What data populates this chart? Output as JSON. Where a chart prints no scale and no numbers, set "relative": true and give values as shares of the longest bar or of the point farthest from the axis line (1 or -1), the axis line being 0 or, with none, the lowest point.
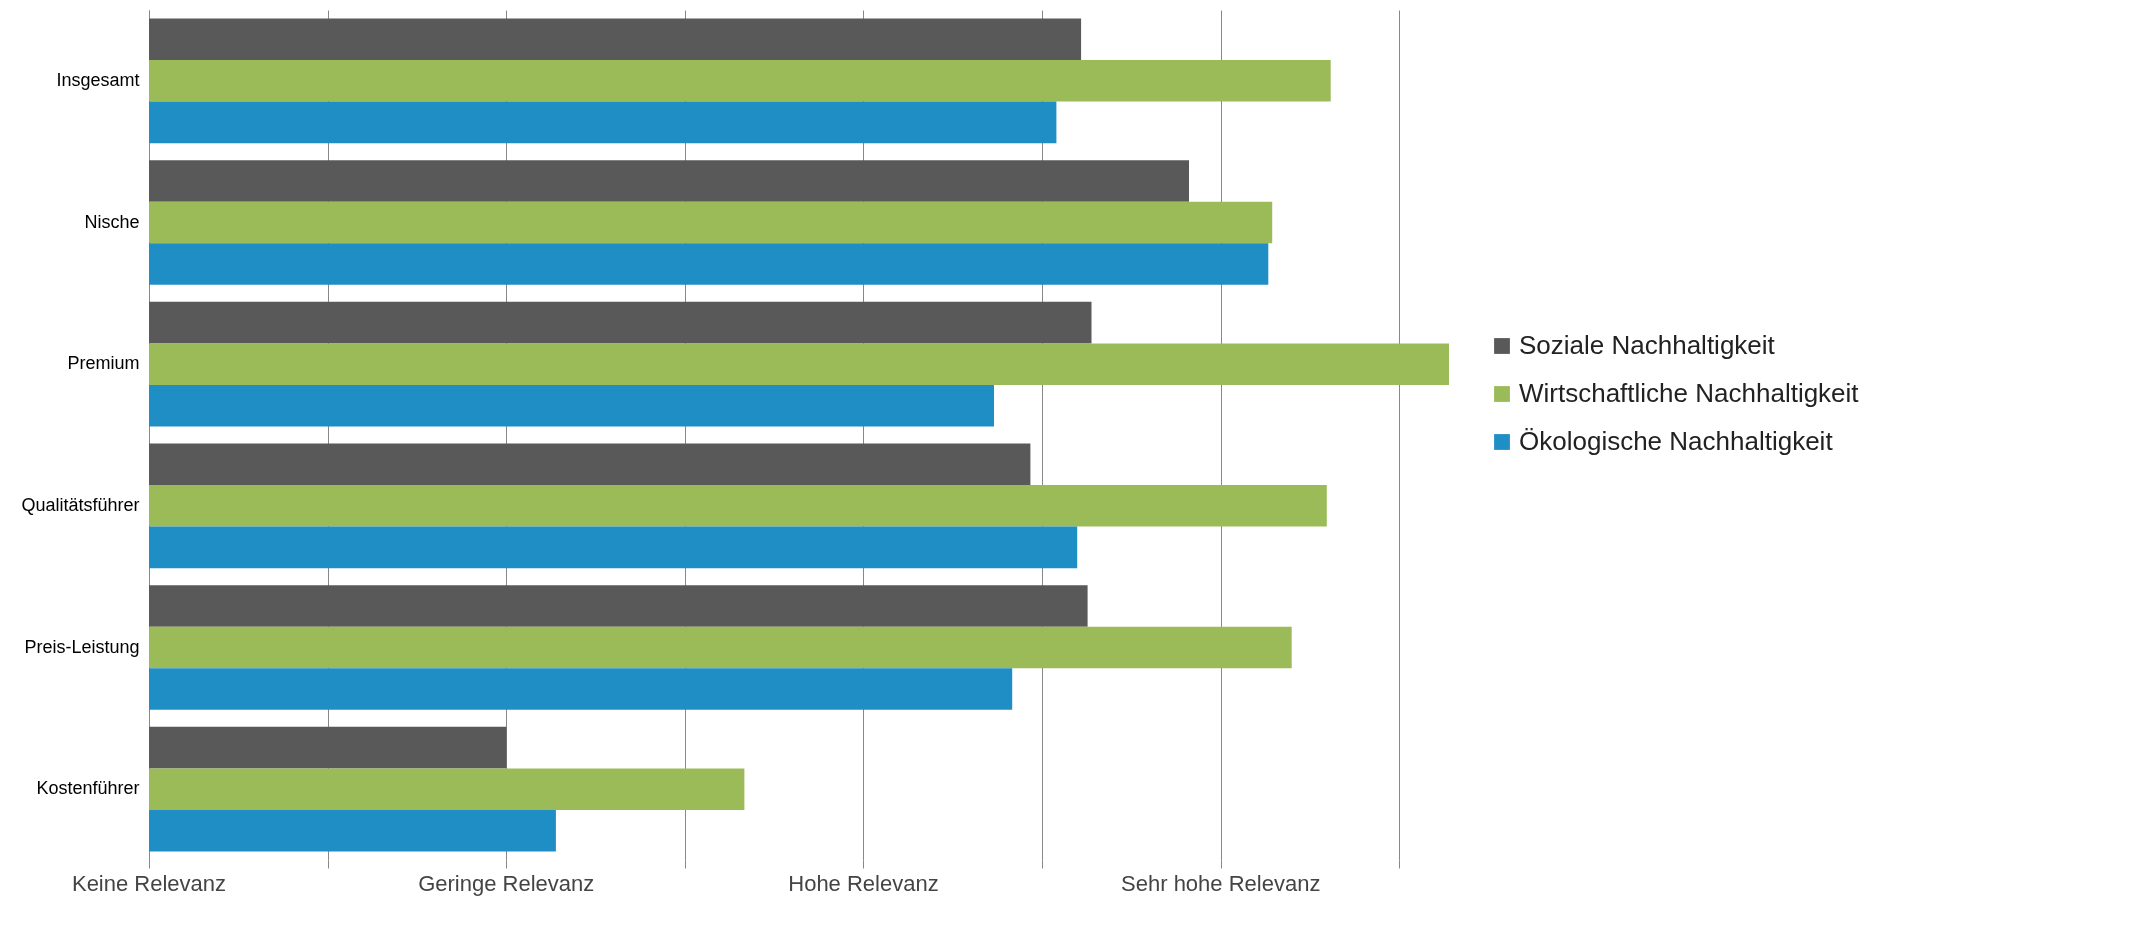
{
  "chart_data": {
    "type": "bar",
    "orientation": "horizontal",
    "relative": true,
    "categories": [
      "Insgesamt",
      "Nische",
      "Premium",
      "Qualitätsführer",
      "Preis-Leistung",
      "Kostenführer"
    ],
    "series": [
      {
        "name": "Soziale Nachhaltigkeit",
        "color": "#595959",
        "values": [
          0.717,
          0.8,
          0.725,
          0.678,
          0.722,
          0.275
        ]
      },
      {
        "name": "Wirtschaftliche Nachhaltigkeit",
        "color": "#9bbb59",
        "values": [
          0.909,
          0.864,
          1.0,
          0.906,
          0.879,
          0.458
        ]
      },
      {
        "name": "Ökologische Nachhaltigkeit",
        "color": "#1f8ec5",
        "values": [
          0.698,
          0.861,
          0.65,
          0.714,
          0.664,
          0.313
        ]
      }
    ],
    "annotations": [
      "Keine Relevanz",
      "Geringe Relevanz",
      "Hohe Relevanz",
      "Sehr hohe Relevanz"
    ],
    "grid": "x",
    "legend": "right"
  }
}
